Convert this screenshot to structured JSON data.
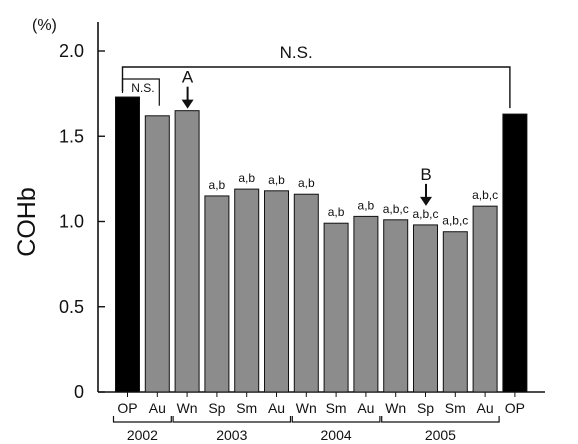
{
  "chart_data": {
    "type": "bar",
    "ylabel": "COHb",
    "y_unit": "(%)",
    "ylim": [
      0,
      2.0
    ],
    "yticks": [
      0,
      0.5,
      1.0,
      1.5,
      2.0
    ],
    "tick_labels": [
      "0",
      "0.5",
      "1.0",
      "1.5",
      "2.0"
    ],
    "categories": [
      "OP",
      "Au",
      "Wn",
      "Sp",
      "Sm",
      "Au",
      "Wn",
      "Sm",
      "Au",
      "Wn",
      "Sp",
      "Sm",
      "Au",
      "OP"
    ],
    "values": [
      1.73,
      1.62,
      1.65,
      1.15,
      1.19,
      1.18,
      1.16,
      0.99,
      1.03,
      1.01,
      0.98,
      0.94,
      1.09,
      1.63
    ],
    "bar_styles": [
      "black",
      "gray",
      "gray",
      "gray",
      "gray",
      "gray",
      "gray",
      "gray",
      "gray",
      "gray",
      "gray",
      "gray",
      "gray",
      "black"
    ],
    "bar_colors": {
      "black": "#000000",
      "gray": "#8c8c8c"
    },
    "significance_labels": [
      "",
      "",
      "",
      "a,b",
      "a,b",
      "a,b",
      "a,b",
      "a,b",
      "a,b",
      "a,b,c",
      "a,b,c",
      "a,b,c",
      "a,b,c",
      ""
    ],
    "year_groups": [
      {
        "label": "2002",
        "first": 0,
        "last": 1
      },
      {
        "label": "2003",
        "first": 2,
        "last": 5
      },
      {
        "label": "2004",
        "first": 6,
        "last": 8
      },
      {
        "label": "2005",
        "first": 9,
        "last": 12
      }
    ],
    "brackets": [
      {
        "label": "N.S.",
        "first": 0,
        "last": 13
      },
      {
        "label": "N.S.",
        "first": 0,
        "last": 1
      }
    ],
    "arrows": [
      {
        "label": "A",
        "index": 2
      },
      {
        "label": "B",
        "index": 10
      }
    ]
  }
}
